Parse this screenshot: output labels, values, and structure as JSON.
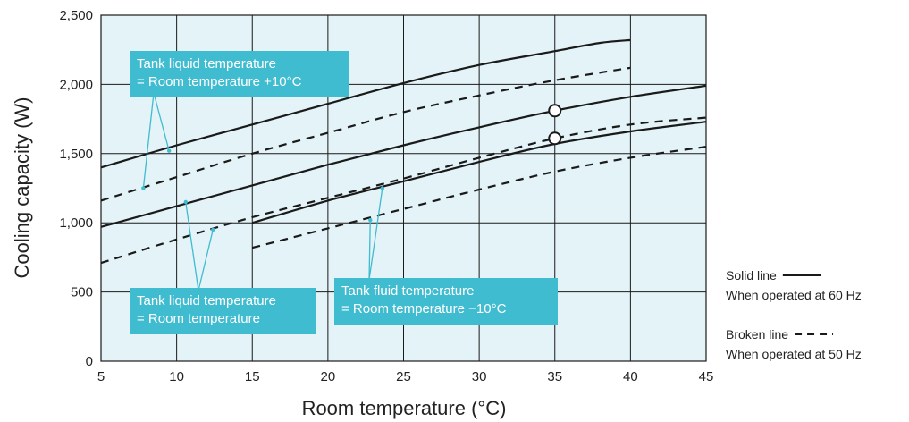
{
  "chart_data": {
    "type": "line",
    "xlabel": "Room temperature (°C)",
    "ylabel": "Cooling capacity (W)",
    "xlim": [
      5,
      45
    ],
    "ylim": [
      0,
      2500
    ],
    "x_ticks": [
      5,
      10,
      15,
      20,
      25,
      30,
      35,
      40,
      45
    ],
    "y_ticks": [
      0,
      500,
      1000,
      1500,
      2000,
      2500
    ],
    "x_tick_labels": [
      "5",
      "10",
      "15",
      "20",
      "25",
      "30",
      "35",
      "40",
      "45"
    ],
    "y_tick_labels": [
      "0",
      "500",
      "1,000",
      "1,500",
      "2,000",
      "2,500"
    ],
    "grid": true,
    "background_color": "#e3f3f7",
    "series": [
      {
        "style": "solid",
        "x": [
          5,
          10,
          15,
          20,
          25,
          30,
          35,
          38,
          40
        ],
        "y": [
          1400,
          1560,
          1710,
          1860,
          2010,
          2140,
          2240,
          2300,
          2320
        ]
      },
      {
        "style": "dashed",
        "x": [
          5,
          10,
          15,
          20,
          25,
          30,
          35,
          40
        ],
        "y": [
          1160,
          1330,
          1500,
          1650,
          1800,
          1920,
          2030,
          2120
        ]
      },
      {
        "style": "solid",
        "x": [
          5,
          10,
          15,
          20,
          25,
          30,
          35,
          40,
          45
        ],
        "y": [
          970,
          1120,
          1270,
          1420,
          1560,
          1690,
          1810,
          1910,
          1990
        ]
      },
      {
        "style": "dashed",
        "x": [
          5,
          10,
          15,
          20,
          25,
          30,
          35,
          40,
          45
        ],
        "y": [
          710,
          880,
          1040,
          1180,
          1320,
          1470,
          1610,
          1710,
          1760
        ]
      },
      {
        "style": "solid",
        "x": [
          15,
          20,
          25,
          30,
          35,
          40,
          45
        ],
        "y": [
          1000,
          1160,
          1300,
          1440,
          1570,
          1660,
          1730
        ]
      },
      {
        "style": "dashed",
        "x": [
          15,
          20,
          25,
          30,
          35,
          40,
          45
        ],
        "y": [
          820,
          960,
          1100,
          1240,
          1370,
          1470,
          1550
        ]
      }
    ],
    "highlight_points": [
      {
        "x": 35,
        "y": 1810
      },
      {
        "x": 35,
        "y": 1610
      }
    ],
    "annotations": [
      {
        "lines": [
          "Tank liquid temperature",
          "= Room temperature +10°C"
        ],
        "targets": [
          {
            "x": 9.5,
            "y": 1520
          },
          {
            "x": 7.8,
            "y": 1250
          }
        ]
      },
      {
        "lines": [
          "Tank liquid temperature",
          "= Room temperature"
        ],
        "targets": [
          {
            "x": 10.6,
            "y": 1150
          },
          {
            "x": 12.4,
            "y": 950
          }
        ]
      },
      {
        "lines": [
          "Tank fluid temperature",
          "= Room temperature −10°C"
        ],
        "targets": [
          {
            "x": 22.8,
            "y": 1020
          },
          {
            "x": 23.6,
            "y": 1250
          }
        ]
      }
    ],
    "legend": {
      "placement": "right",
      "entries": [
        {
          "style": "solid",
          "label": "Solid line",
          "description": "When operated at 60 Hz"
        },
        {
          "style": "dashed",
          "label": "Broken line",
          "description": "When operated at 50 Hz"
        }
      ]
    },
    "colors": {
      "line": "#1a1a1a",
      "callout": "#40bcd0",
      "grid": "#1a1a1a"
    }
  }
}
